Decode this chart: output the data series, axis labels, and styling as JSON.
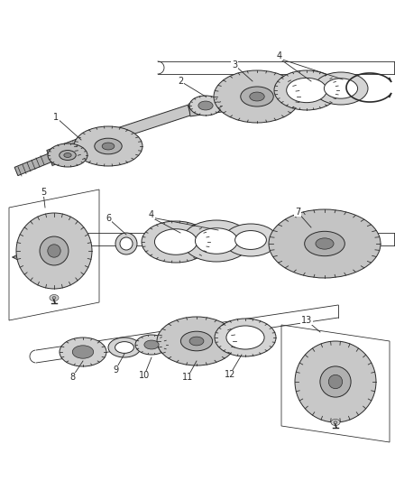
{
  "bg": "#ffffff",
  "lc": "#2a2a2a",
  "lw": 0.7,
  "fc_gear": "#d4d4d4",
  "fc_hub": "#b8b8b8",
  "fc_ring": "#e0e0e0",
  "fc_box": "none",
  "label_fs": 7,
  "figsize": [
    4.38,
    5.33
  ],
  "dpi": 100
}
